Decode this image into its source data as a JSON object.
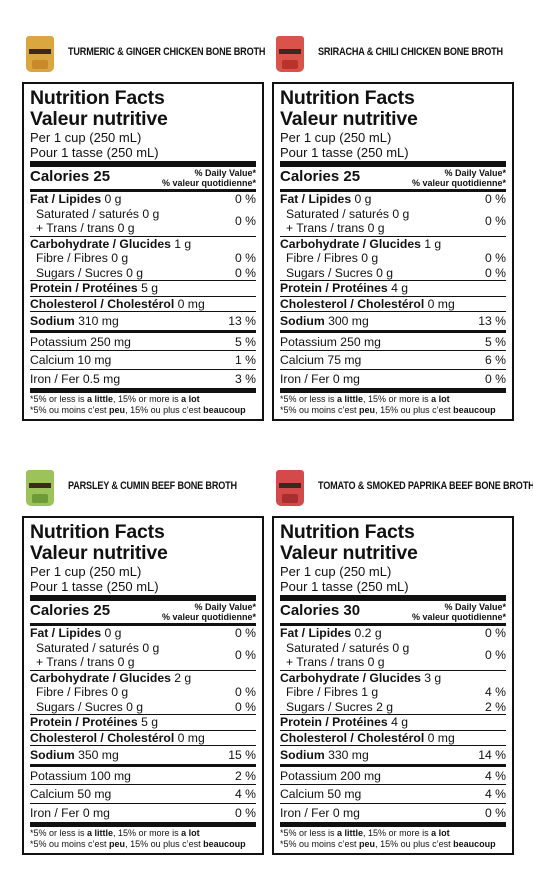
{
  "panels": [
    {
      "title": "TURMERIC & GINGER CHICKEN BONE BROTH",
      "pouch_color": "#d9a640",
      "window_color": "#c98a2a",
      "calories": "25",
      "fat": "0 g",
      "fat_dv": "0 %",
      "sat": "0 g",
      "trans": "0 g",
      "sat_trans_dv": "0 %",
      "carb": "1 g",
      "fibre": "0 g",
      "fibre_dv": "0 %",
      "sugars": "0 g",
      "sugars_dv": "0 %",
      "protein": "5 g",
      "chol": "0 mg",
      "sodium": "310 mg",
      "sodium_dv": "13 %",
      "potassium": "250 mg",
      "potassium_dv": "5 %",
      "calcium": "10 mg",
      "calcium_dv": "1 %",
      "iron": "0.5 mg",
      "iron_dv": "3 %"
    },
    {
      "title": "SRIRACHA & CHILI CHICKEN BONE BROTH",
      "pouch_color": "#d9534a",
      "window_color": "#b8332b",
      "calories": "25",
      "fat": "0 g",
      "fat_dv": "0 %",
      "sat": "0 g",
      "trans": "0 g",
      "sat_trans_dv": "0 %",
      "carb": "1 g",
      "fibre": "0 g",
      "fibre_dv": "0 %",
      "sugars": "0 g",
      "sugars_dv": "0 %",
      "protein": "4 g",
      "chol": "0 mg",
      "sodium": "300 mg",
      "sodium_dv": "13 %",
      "potassium": "250 mg",
      "potassium_dv": "5 %",
      "calcium": "75 mg",
      "calcium_dv": "6 %",
      "iron": "0 mg",
      "iron_dv": "0 %"
    },
    {
      "title": "PARSLEY & CUMIN BEEF BONE BROTH",
      "pouch_color": "#9cc25a",
      "window_color": "#6e9a38",
      "calories": "25",
      "fat": "0 g",
      "fat_dv": "0 %",
      "sat": "0 g",
      "trans": "0 g",
      "sat_trans_dv": "0 %",
      "carb": "2 g",
      "fibre": "0 g",
      "fibre_dv": "0 %",
      "sugars": "0 g",
      "sugars_dv": "0 %",
      "protein": "5 g",
      "chol": "0 mg",
      "sodium": "350 mg",
      "sodium_dv": "15 %",
      "potassium": "100 mg",
      "potassium_dv": "2 %",
      "calcium": "50 mg",
      "calcium_dv": "4 %",
      "iron": "0 mg",
      "iron_dv": "0 %"
    },
    {
      "title": "TOMATO & SMOKED PAPRIKA BEEF BONE BROTH",
      "pouch_color": "#d44a4a",
      "window_color": "#a82f2f",
      "calories": "30",
      "fat": "0.2 g",
      "fat_dv": "0 %",
      "sat": "0 g",
      "trans": "0 g",
      "sat_trans_dv": "0 %",
      "carb": "3 g",
      "fibre": "1 g",
      "fibre_dv": "4 %",
      "sugars": "2 g",
      "sugars_dv": "2 %",
      "protein": "4 g",
      "chol": "0 mg",
      "sodium": "330 mg",
      "sodium_dv": "14 %",
      "potassium": "200 mg",
      "potassium_dv": "4 %",
      "calcium": "50 mg",
      "calcium_dv": "4 %",
      "iron": "0 mg",
      "iron_dv": "0 %"
    }
  ],
  "labels": {
    "nf_en": "Nutrition Facts",
    "nf_fr": "Valeur nutritive",
    "per_en": "Per 1 cup (250 mL)",
    "per_fr": "Pour 1 tasse (250 mL)",
    "calories": "Calories",
    "dv_en": "% Daily Value*",
    "dv_fr": "% valeur quotidienne*",
    "fat": "Fat / Lipides",
    "sat": "Saturated / saturés",
    "trans": "+ Trans / trans",
    "carb": "Carbohydrate / Glucides",
    "fibre": "Fibre / Fibres",
    "sugars": "Sugars / Sucres",
    "protein": "Protein / Protéines",
    "chol": "Cholesterol / Cholestérol",
    "sodium": "Sodium",
    "potassium": "Potassium",
    "calcium": "Calcium",
    "iron": "Iron / Fer",
    "foot_en_1": "*5% or less is ",
    "foot_en_b1": "a little",
    "foot_en_2": ", 15% or more is ",
    "foot_en_b2": "a lot",
    "foot_fr_1": "*5% ou moins c’est ",
    "foot_fr_b1": "peu",
    "foot_fr_2": ", 15% ou plus c’est ",
    "foot_fr_b2": "beaucoup"
  }
}
